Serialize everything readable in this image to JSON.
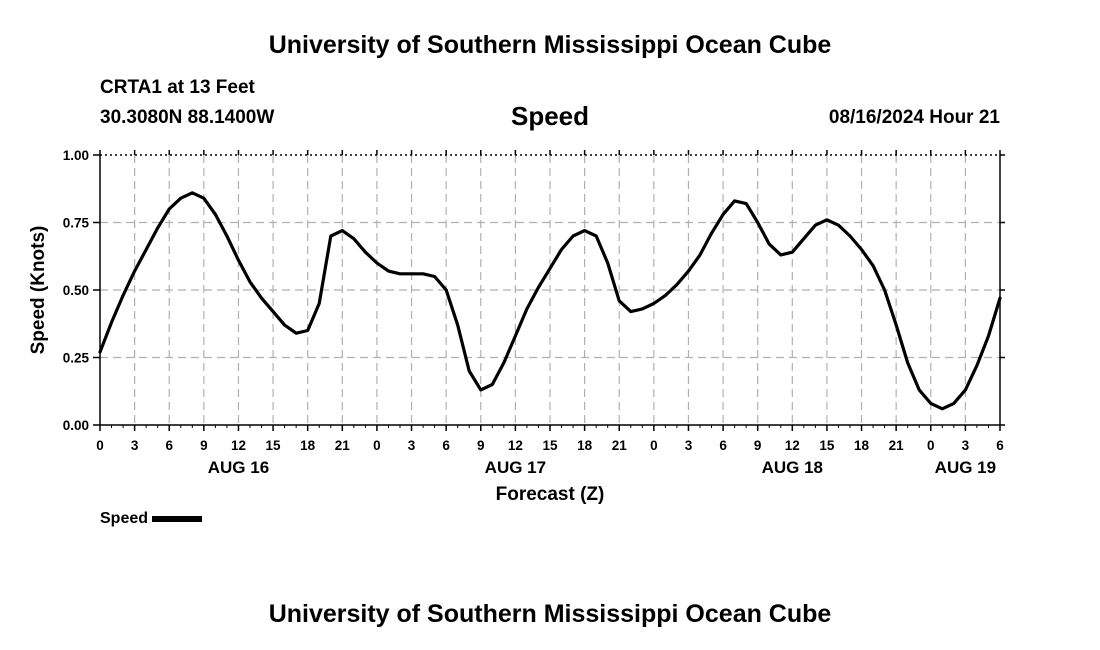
{
  "header": {
    "title": "University of Southern Mississippi Ocean Cube",
    "station": "CRTA1 at 13 Feet",
    "coords": "30.3080N  88.1400W",
    "chart_title": "Speed",
    "datetime": "08/16/2024 Hour 21"
  },
  "footer": {
    "title": "University of Southern Mississippi Ocean Cube"
  },
  "legend": {
    "label": "Speed",
    "color": "#000000"
  },
  "colors": {
    "line": "#000000",
    "grid": "#b0b0b0",
    "background": "#ffffff"
  },
  "chart_data": {
    "type": "line",
    "title": "Speed",
    "xlabel": "Forecast (Z)",
    "ylabel": "Speed (Knots)",
    "ylim": [
      0,
      1
    ],
    "xlim": [
      0,
      78
    ],
    "x_unit": "hours from 00Z AUG 16",
    "yticks": [
      0,
      0.25,
      0.5,
      0.75,
      1.0
    ],
    "ytick_labels": [
      "0.00",
      "0.25",
      "0.50",
      "0.75",
      "1.00"
    ],
    "xtick_positions": [
      0,
      3,
      6,
      9,
      12,
      15,
      18,
      21,
      24,
      27,
      30,
      33,
      36,
      39,
      42,
      45,
      48,
      51,
      54,
      57,
      60,
      63,
      66,
      69,
      72,
      75,
      78
    ],
    "xtick_labels": [
      "0",
      "3",
      "6",
      "9",
      "12",
      "15",
      "18",
      "21",
      "0",
      "3",
      "6",
      "9",
      "12",
      "15",
      "18",
      "21",
      "0",
      "3",
      "6",
      "9",
      "12",
      "15",
      "18",
      "21",
      "0",
      "3",
      "6"
    ],
    "day_labels": [
      {
        "x": 12,
        "label": "AUG 16"
      },
      {
        "x": 36,
        "label": "AUG 17"
      },
      {
        "x": 60,
        "label": "AUG 18"
      },
      {
        "x": 75,
        "label": "AUG 19"
      }
    ],
    "grid": true,
    "series": [
      {
        "name": "Speed",
        "x": [
          0,
          1,
          2,
          3,
          4,
          5,
          6,
          7,
          8,
          9,
          10,
          11,
          12,
          13,
          14,
          15,
          16,
          17,
          18,
          19,
          20,
          21,
          22,
          23,
          24,
          25,
          26,
          27,
          28,
          29,
          30,
          31,
          32,
          33,
          34,
          35,
          36,
          37,
          38,
          39,
          40,
          41,
          42,
          43,
          44,
          45,
          46,
          47,
          48,
          49,
          50,
          51,
          52,
          53,
          54,
          55,
          56,
          57,
          58,
          59,
          60,
          61,
          62,
          63,
          64,
          65,
          66,
          67,
          68,
          69,
          70,
          71,
          72,
          73,
          74,
          75,
          76,
          77,
          78
        ],
        "values": [
          0.27,
          0.38,
          0.48,
          0.57,
          0.65,
          0.73,
          0.8,
          0.84,
          0.86,
          0.84,
          0.78,
          0.7,
          0.61,
          0.53,
          0.47,
          0.42,
          0.37,
          0.34,
          0.35,
          0.45,
          0.7,
          0.72,
          0.69,
          0.64,
          0.6,
          0.57,
          0.56,
          0.56,
          0.56,
          0.55,
          0.5,
          0.37,
          0.2,
          0.13,
          0.15,
          0.23,
          0.33,
          0.43,
          0.51,
          0.58,
          0.65,
          0.7,
          0.72,
          0.7,
          0.6,
          0.46,
          0.42,
          0.43,
          0.45,
          0.48,
          0.52,
          0.57,
          0.63,
          0.71,
          0.78,
          0.83,
          0.82,
          0.75,
          0.67,
          0.63,
          0.64,
          0.69,
          0.74,
          0.76,
          0.74,
          0.7,
          0.65,
          0.59,
          0.5,
          0.37,
          0.23,
          0.13,
          0.08,
          0.06,
          0.08,
          0.13,
          0.22,
          0.33,
          0.47
        ]
      }
    ]
  }
}
